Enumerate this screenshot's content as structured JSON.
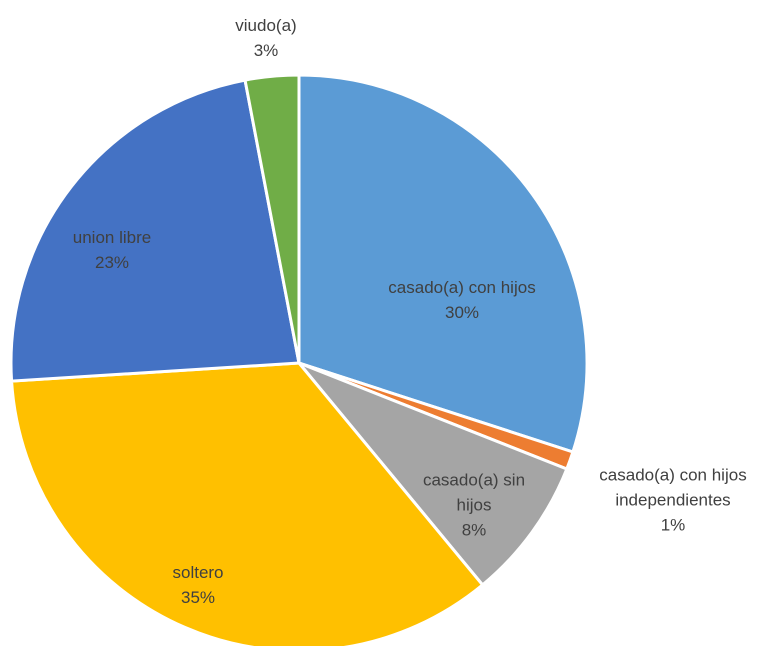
{
  "chart_data": {
    "type": "pie",
    "categories": [
      "casado(a) con hijos",
      "casado(a) con hijos independientes",
      "casado(a) sin hijos",
      "soltero",
      "union libre",
      "viudo(a)"
    ],
    "values": [
      30,
      1,
      8,
      35,
      23,
      3
    ],
    "value_labels": [
      "30%",
      "1%",
      "8%",
      "35%",
      "23%",
      "3%"
    ],
    "colors": [
      "#5b9bd5",
      "#ed7d31",
      "#a5a5a5",
      "#ffc000",
      "#4472c4",
      "#70ad47"
    ]
  }
}
